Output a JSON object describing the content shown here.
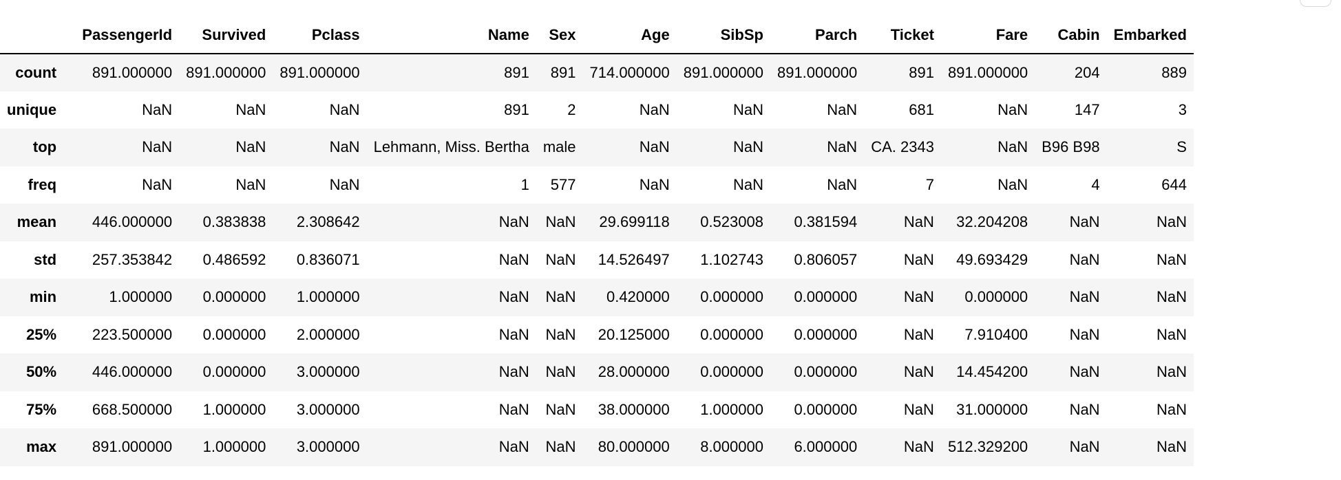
{
  "table": {
    "columns": [
      "",
      "PassengerId",
      "Survived",
      "Pclass",
      "Name",
      "Sex",
      "Age",
      "SibSp",
      "Parch",
      "Ticket",
      "Fare",
      "Cabin",
      "Embarked"
    ],
    "rows": [
      {
        "label": "count",
        "cells": [
          "891.000000",
          "891.000000",
          "891.000000",
          "891",
          "891",
          "714.000000",
          "891.000000",
          "891.000000",
          "891",
          "891.000000",
          "204",
          "889"
        ]
      },
      {
        "label": "unique",
        "cells": [
          "NaN",
          "NaN",
          "NaN",
          "891",
          "2",
          "NaN",
          "NaN",
          "NaN",
          "681",
          "NaN",
          "147",
          "3"
        ]
      },
      {
        "label": "top",
        "cells": [
          "NaN",
          "NaN",
          "NaN",
          "Lehmann, Miss. Bertha",
          "male",
          "NaN",
          "NaN",
          "NaN",
          "CA. 2343",
          "NaN",
          "B96 B98",
          "S"
        ]
      },
      {
        "label": "freq",
        "cells": [
          "NaN",
          "NaN",
          "NaN",
          "1",
          "577",
          "NaN",
          "NaN",
          "NaN",
          "7",
          "NaN",
          "4",
          "644"
        ]
      },
      {
        "label": "mean",
        "cells": [
          "446.000000",
          "0.383838",
          "2.308642",
          "NaN",
          "NaN",
          "29.699118",
          "0.523008",
          "0.381594",
          "NaN",
          "32.204208",
          "NaN",
          "NaN"
        ]
      },
      {
        "label": "std",
        "cells": [
          "257.353842",
          "0.486592",
          "0.836071",
          "NaN",
          "NaN",
          "14.526497",
          "1.102743",
          "0.806057",
          "NaN",
          "49.693429",
          "NaN",
          "NaN"
        ]
      },
      {
        "label": "min",
        "cells": [
          "1.000000",
          "0.000000",
          "1.000000",
          "NaN",
          "NaN",
          "0.420000",
          "0.000000",
          "0.000000",
          "NaN",
          "0.000000",
          "NaN",
          "NaN"
        ]
      },
      {
        "label": "25%",
        "cells": [
          "223.500000",
          "0.000000",
          "2.000000",
          "NaN",
          "NaN",
          "20.125000",
          "0.000000",
          "0.000000",
          "NaN",
          "7.910400",
          "NaN",
          "NaN"
        ]
      },
      {
        "label": "50%",
        "cells": [
          "446.000000",
          "0.000000",
          "3.000000",
          "NaN",
          "NaN",
          "28.000000",
          "0.000000",
          "0.000000",
          "NaN",
          "14.454200",
          "NaN",
          "NaN"
        ]
      },
      {
        "label": "75%",
        "cells": [
          "668.500000",
          "1.000000",
          "3.000000",
          "NaN",
          "NaN",
          "38.000000",
          "1.000000",
          "0.000000",
          "NaN",
          "31.000000",
          "NaN",
          "NaN"
        ]
      },
      {
        "label": "max",
        "cells": [
          "891.000000",
          "1.000000",
          "3.000000",
          "NaN",
          "NaN",
          "80.000000",
          "8.000000",
          "6.000000",
          "NaN",
          "512.329200",
          "NaN",
          "NaN"
        ]
      }
    ]
  }
}
